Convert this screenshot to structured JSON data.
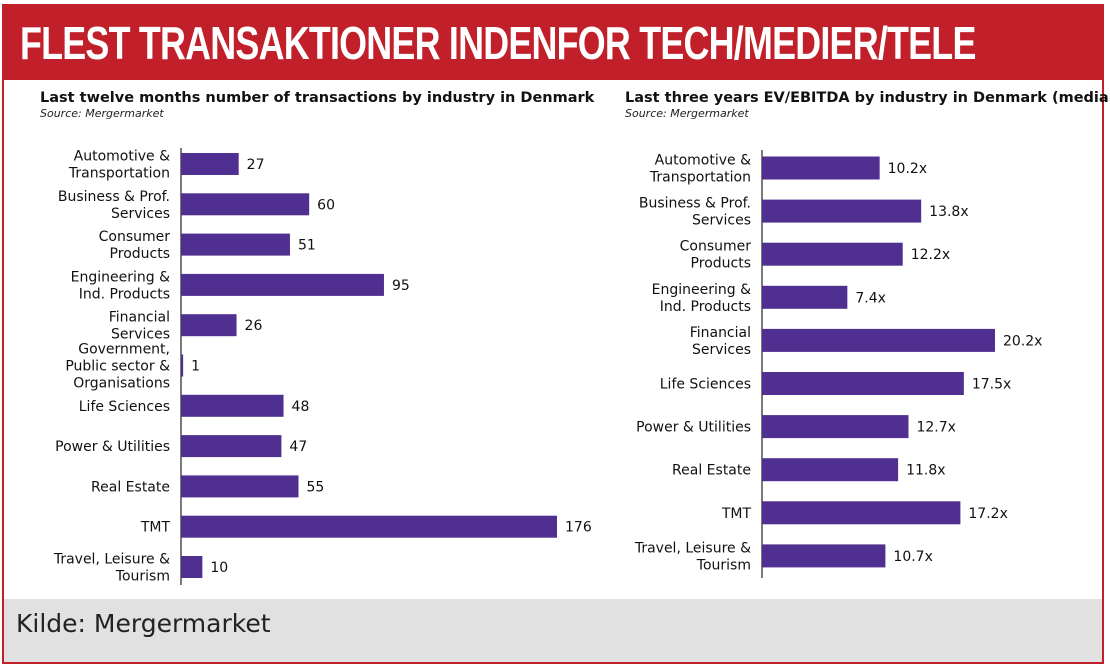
{
  "header": {
    "title": "FLEST TRANSAKTIONER INDENFOR TECH/MEDIER/TELE"
  },
  "footer": {
    "source": "Kilde: Mergermarket"
  },
  "colors": {
    "brand_red": "#c1202a",
    "bar": "#4f3090",
    "footer_bg": "#e1e1e1"
  },
  "chart_data": [
    {
      "type": "bar",
      "orientation": "horizontal",
      "title": "Last twelve months number of transactions by industry in Denmark",
      "subtitle": "Source: Mergermarket",
      "categories": [
        [
          "Automotive &",
          "Transportation"
        ],
        [
          "Business & Prof.",
          "Services"
        ],
        [
          "Consumer",
          "Products"
        ],
        [
          "Engineering &",
          "Ind. Products"
        ],
        [
          "Financial",
          "Services"
        ],
        [
          "Government,",
          "Public sector &",
          "Organisations"
        ],
        [
          "Life Sciences"
        ],
        [
          "Power & Utilities"
        ],
        [
          "Real Estate"
        ],
        [
          "TMT"
        ],
        [
          "Travel, Leisure &",
          "Tourism"
        ]
      ],
      "values": [
        27,
        60,
        51,
        95,
        26,
        1,
        48,
        47,
        55,
        176,
        10
      ],
      "labels": [
        "27",
        "60",
        "51",
        "95",
        "26",
        "1",
        "48",
        "47",
        "55",
        "176",
        "10"
      ],
      "xlim": [
        0,
        176
      ]
    },
    {
      "type": "bar",
      "orientation": "horizontal",
      "title": "Last three years EV/EBITDA by industry in Denmark (median)",
      "subtitle": "Source: Mergermarket",
      "categories": [
        [
          "Automotive &",
          "Transportation"
        ],
        [
          "Business & Prof.",
          "Services"
        ],
        [
          "Consumer",
          "Products"
        ],
        [
          "Engineering &",
          "Ind. Products"
        ],
        [
          "Financial",
          "Services"
        ],
        [
          "Life Sciences"
        ],
        [
          "Power & Utilities"
        ],
        [
          "Real Estate"
        ],
        [
          "TMT"
        ],
        [
          "Travel, Leisure &",
          "Tourism"
        ]
      ],
      "values": [
        10.2,
        13.8,
        12.2,
        7.4,
        20.2,
        17.5,
        12.7,
        11.8,
        17.2,
        10.7
      ],
      "labels": [
        "10.2x",
        "13.8x",
        "12.2x",
        "7.4x",
        "20.2x",
        "17.5x",
        "12.7x",
        "11.8x",
        "17.2x",
        "10.7x"
      ],
      "xlim": [
        0,
        20.2
      ]
    }
  ]
}
